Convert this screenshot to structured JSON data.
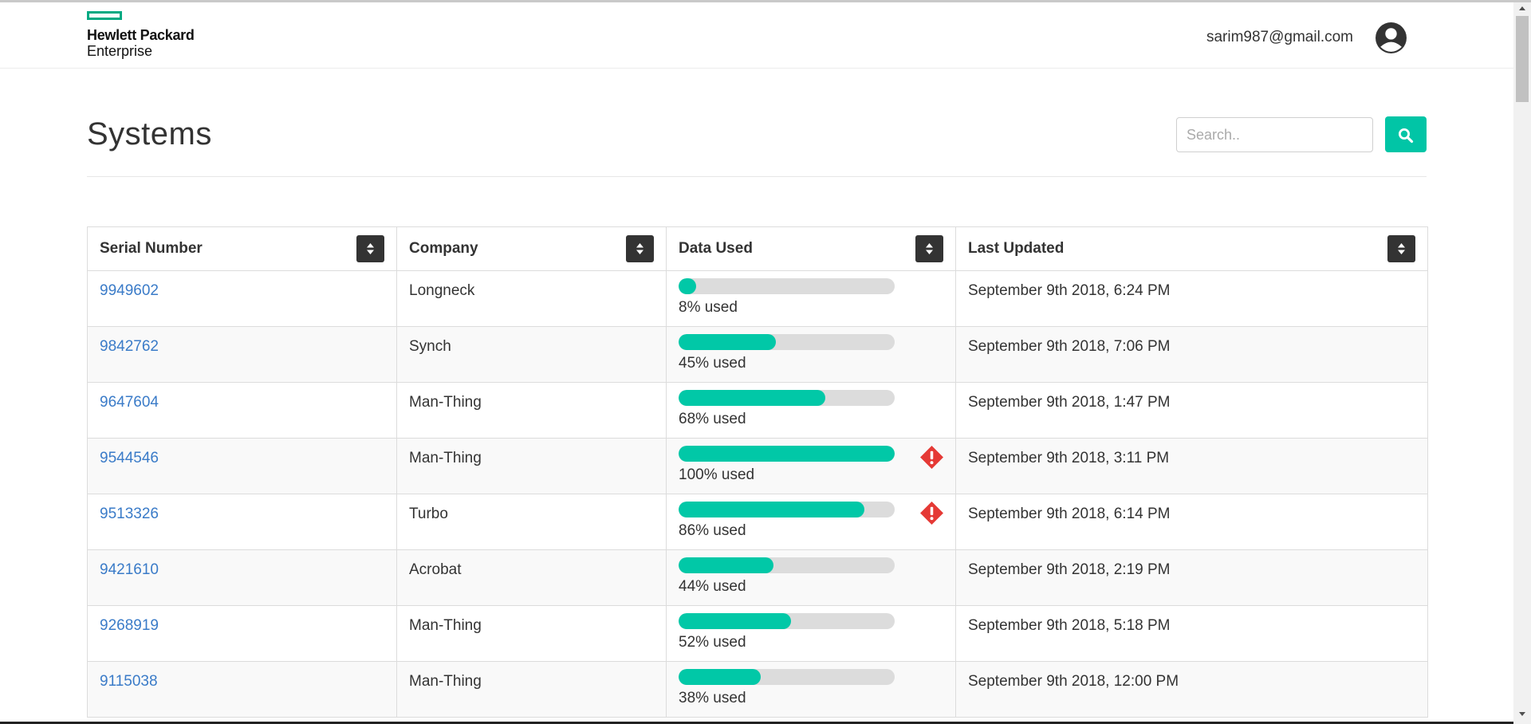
{
  "brand": {
    "name_line1": "Hewlett Packard",
    "name_line2": "Enterprise",
    "accent_color": "#01a982"
  },
  "header": {
    "user_email": "sarim987@gmail.com",
    "avatar_icon": "user-circle-icon"
  },
  "page": {
    "title": "Systems"
  },
  "search": {
    "placeholder": "Search..",
    "value": "",
    "button_icon": "search-icon",
    "button_color": "#01c5a6"
  },
  "table": {
    "columns": [
      "Serial Number",
      "Company",
      "Data Used",
      "Last Updated"
    ],
    "sort_icon": "sort-icon",
    "bar_color": "#01c8a7",
    "warning_color": "#e53935",
    "rows": [
      {
        "serial": "9949602",
        "company": "Longneck",
        "used_percent": 8,
        "used_label": "8% used",
        "warning": false,
        "updated": "September 9th 2018, 6:24 PM"
      },
      {
        "serial": "9842762",
        "company": "Synch",
        "used_percent": 45,
        "used_label": "45% used",
        "warning": false,
        "updated": "September 9th 2018, 7:06 PM"
      },
      {
        "serial": "9647604",
        "company": "Man-Thing",
        "used_percent": 68,
        "used_label": "68% used",
        "warning": false,
        "updated": "September 9th 2018, 1:47 PM"
      },
      {
        "serial": "9544546",
        "company": "Man-Thing",
        "used_percent": 100,
        "used_label": "100% used",
        "warning": true,
        "updated": "September 9th 2018, 3:11 PM"
      },
      {
        "serial": "9513326",
        "company": "Turbo",
        "used_percent": 86,
        "used_label": "86% used",
        "warning": true,
        "updated": "September 9th 2018, 6:14 PM"
      },
      {
        "serial": "9421610",
        "company": "Acrobat",
        "used_percent": 44,
        "used_label": "44% used",
        "warning": false,
        "updated": "September 9th 2018, 2:19 PM"
      },
      {
        "serial": "9268919",
        "company": "Man-Thing",
        "used_percent": 52,
        "used_label": "52% used",
        "warning": false,
        "updated": "September 9th 2018, 5:18 PM"
      },
      {
        "serial": "9115038",
        "company": "Man-Thing",
        "used_percent": 38,
        "used_label": "38% used",
        "warning": false,
        "updated": "September 9th 2018, 12:00 PM"
      }
    ]
  }
}
